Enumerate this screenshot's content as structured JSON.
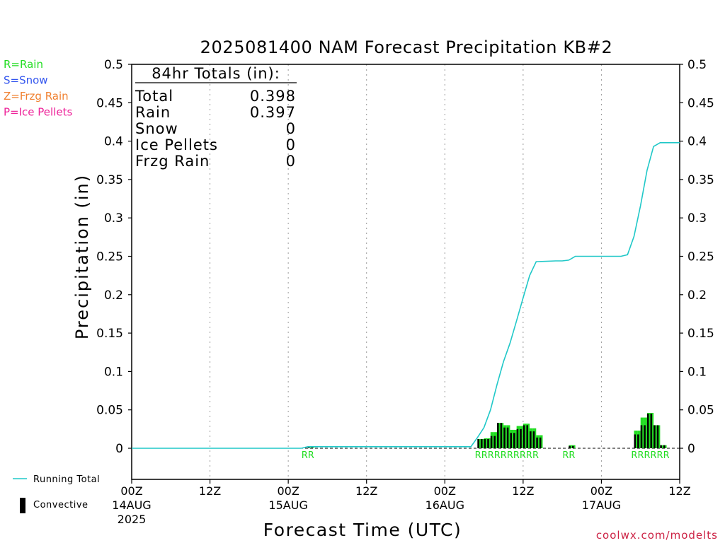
{
  "chart_data": {
    "type": "bar",
    "title": "2025081400 NAM Forecast Precipitation KB#2",
    "xlabel": "Forecast Time (UTC)",
    "ylabel": "Precipitation (in)",
    "ylim": [
      0,
      0.5
    ],
    "yticks": [
      "0.5",
      "0.45",
      "0.4",
      "0.35",
      "0.3",
      "0.25",
      "0.2",
      "0.15",
      "0.1",
      "0.05",
      "0"
    ],
    "xlim_hours": [
      0,
      84
    ],
    "xticks": [
      {
        "hour": 0,
        "lines": [
          "00Z",
          "14AUG",
          "2025"
        ]
      },
      {
        "hour": 12,
        "lines": [
          "12Z"
        ]
      },
      {
        "hour": 24,
        "lines": [
          "00Z",
          "15AUG"
        ]
      },
      {
        "hour": 36,
        "lines": [
          "12Z"
        ]
      },
      {
        "hour": 48,
        "lines": [
          "00Z",
          "16AUG"
        ]
      },
      {
        "hour": 60,
        "lines": [
          "12Z"
        ]
      },
      {
        "hour": 72,
        "lines": [
          "00Z",
          "17AUG"
        ]
      },
      {
        "hour": 84,
        "lines": [
          "12Z"
        ]
      }
    ],
    "grid_hours": [
      12,
      24,
      36,
      48,
      60,
      72
    ],
    "type_legend": [
      {
        "text": "R=Rain",
        "color": "#22dd22"
      },
      {
        "text": "S=Snow",
        "color": "#3355ee"
      },
      {
        "text": "Z=Frzg Rain",
        "color": "#f08030"
      },
      {
        "text": "P=Ice Pellets",
        "color": "#ee2299"
      }
    ],
    "totals": {
      "heading": "84hr Totals (in):",
      "rows": [
        {
          "label": "Total",
          "value": "0.398"
        },
        {
          "label": "Rain",
          "value": "0.397"
        },
        {
          "label": "Snow",
          "value": "0"
        },
        {
          "label": "Ice Pellets",
          "value": "0"
        },
        {
          "label": "Frzg Rain",
          "value": "0"
        }
      ]
    },
    "series": [
      {
        "name": "Running Total",
        "type": "line",
        "color": "#20c8c8",
        "x": [
          0,
          26,
          27,
          28,
          30,
          36,
          42,
          48,
          52,
          53,
          54,
          55,
          56,
          57,
          58,
          59,
          60,
          61,
          62,
          65,
          66,
          67,
          68,
          72,
          75,
          76,
          77,
          78,
          79,
          80,
          81,
          82,
          83,
          84
        ],
        "y": [
          0,
          0,
          0.002,
          0.002,
          0.002,
          0.002,
          0.002,
          0.002,
          0.002,
          0.014,
          0.027,
          0.05,
          0.083,
          0.113,
          0.137,
          0.166,
          0.196,
          0.225,
          0.243,
          0.244,
          0.244,
          0.245,
          0.25,
          0.25,
          0.25,
          0.252,
          0.276,
          0.316,
          0.362,
          0.393,
          0.398,
          0.398,
          0.398,
          0.398
        ]
      },
      {
        "name": "Convective",
        "type": "bar",
        "x": [
          27,
          27.5,
          53,
          53.5,
          54,
          54.5,
          55,
          55.5,
          56,
          56.5,
          57,
          57.5,
          58,
          58.5,
          59,
          59.5,
          60,
          60.5,
          61,
          61.5,
          62,
          62.5,
          67,
          67.5,
          77,
          77.5,
          78,
          78.5,
          79,
          79.5,
          80,
          80.5,
          81,
          81.5
        ],
        "total": [
          0.001,
          0.001,
          0.012,
          0.012,
          0.013,
          0.013,
          0.021,
          0.021,
          0.033,
          0.033,
          0.03,
          0.03,
          0.024,
          0.024,
          0.029,
          0.029,
          0.032,
          0.032,
          0.026,
          0.026,
          0.017,
          0.017,
          0.004,
          0.004,
          0.023,
          0.023,
          0.04,
          0.04,
          0.046,
          0.046,
          0.03,
          0.03,
          0.004,
          0.004
        ],
        "convective": [
          0.001,
          0.001,
          0.012,
          0.012,
          0.012,
          0.012,
          0.016,
          0.016,
          0.033,
          0.033,
          0.027,
          0.027,
          0.02,
          0.02,
          0.025,
          0.025,
          0.03,
          0.03,
          0.022,
          0.022,
          0.014,
          0.014,
          0.003,
          0.003,
          0.018,
          0.018,
          0.03,
          0.03,
          0.045,
          0.045,
          0.03,
          0.03,
          0.004,
          0.004
        ],
        "ptype": [
          "R",
          "R",
          "R",
          "R",
          "R",
          "R",
          "R",
          "R",
          "R",
          "R",
          "R",
          "R",
          "R",
          "R",
          "R",
          "R",
          "R",
          "R",
          "R",
          "R",
          "R",
          "R",
          "R",
          "R",
          "R",
          "R",
          "R",
          "R",
          "R",
          "R",
          "R",
          "R",
          "R",
          "R"
        ]
      }
    ],
    "legend": [
      {
        "name": "Running Total",
        "marker": "line",
        "color": "#20c8c8"
      },
      {
        "name": "Convective",
        "marker": "bar",
        "color": "#000000"
      }
    ],
    "precip_type_markers": [
      {
        "x": 27.0,
        "text": "RR"
      },
      {
        "x": 57.5,
        "text": "RRRRRRRRRR"
      },
      {
        "x": 67.0,
        "text": "RR"
      },
      {
        "x": 79.5,
        "text": "RRRRRR"
      }
    ],
    "rain_bar_color": "#22dd22",
    "convective_bar_color": "#000000",
    "grid_on": true
  },
  "watermark": "coolwx.com/modelts"
}
